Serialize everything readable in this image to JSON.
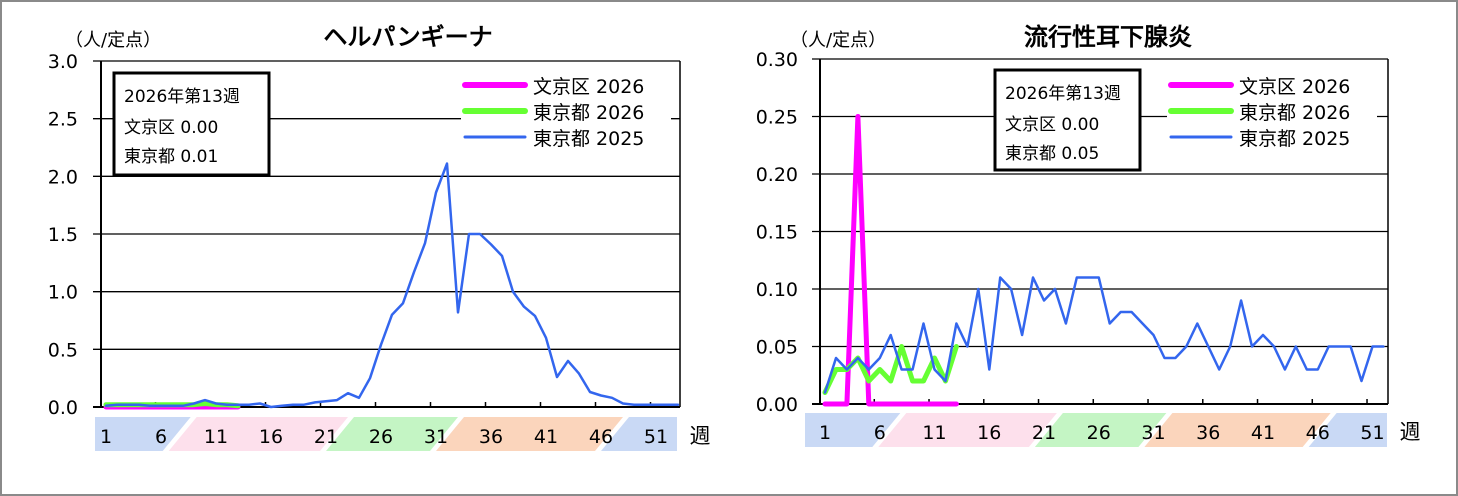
{
  "chart_data": [
    {
      "type": "line",
      "title": "ヘルパンギーナ",
      "ylabel": "（人/定点）",
      "xlabel": "週",
      "ylim": [
        0,
        3.0
      ],
      "yticks": [
        "0.0",
        "0.5",
        "1.0",
        "1.5",
        "2.0",
        "2.5",
        "3.0"
      ],
      "ytick_values": [
        0,
        0.5,
        1.0,
        1.5,
        2.0,
        2.5,
        3.0
      ],
      "x_tick_labels": [
        "1",
        "6",
        "11",
        "16",
        "21",
        "26",
        "31",
        "36",
        "41",
        "46",
        "51"
      ],
      "grid": true,
      "legend_position": "top-right",
      "info_box": {
        "line1": "2026年第13週",
        "line2_label": "文京区",
        "line2_value": "0.00",
        "line3_label": "東京都",
        "line3_value": "0.01"
      },
      "series": [
        {
          "name": "文京区 2026",
          "color": "#ff00ff",
          "width": 5,
          "values": [
            0,
            0,
            0,
            0,
            0,
            0,
            0,
            0,
            0,
            0,
            0,
            0,
            0
          ]
        },
        {
          "name": "東京都 2026",
          "color": "#66ff33",
          "width": 5,
          "values": [
            0.02,
            0.02,
            0.02,
            0.02,
            0.02,
            0.02,
            0.02,
            0.02,
            0.02,
            0.03,
            0.02,
            0.02,
            0.01
          ]
        },
        {
          "name": "東京都 2025",
          "color": "#3366ee",
          "width": 2.5,
          "values": [
            0.01,
            0.02,
            0.02,
            0.02,
            0.01,
            0.01,
            0.01,
            0.01,
            0.03,
            0.06,
            0.03,
            0.02,
            0.02,
            0.02,
            0.03,
            0.0,
            0.01,
            0.02,
            0.02,
            0.04,
            0.05,
            0.06,
            0.12,
            0.08,
            0.25,
            0.54,
            0.8,
            0.9,
            1.17,
            1.42,
            1.86,
            2.11,
            0.82,
            1.5,
            1.5,
            1.41,
            1.31,
            1.0,
            0.87,
            0.79,
            0.6,
            0.26,
            0.4,
            0.29,
            0.13,
            0.1,
            0.08,
            0.03,
            0.02,
            0.02,
            0.02,
            0.02,
            0.02
          ]
        }
      ]
    },
    {
      "type": "line",
      "title": "流行性耳下腺炎",
      "ylabel": "（人/定点）",
      "xlabel": "週",
      "ylim": [
        0,
        0.3
      ],
      "yticks": [
        "0.00",
        "0.05",
        "0.10",
        "0.15",
        "0.20",
        "0.25",
        "0.30"
      ],
      "ytick_values": [
        0,
        0.05,
        0.1,
        0.15,
        0.2,
        0.25,
        0.3
      ],
      "x_tick_labels": [
        "1",
        "6",
        "11",
        "16",
        "21",
        "26",
        "31",
        "36",
        "41",
        "46",
        "51"
      ],
      "grid": true,
      "legend_position": "top-right",
      "info_box": {
        "line1": "2026年第13週",
        "line2_label": "文京区",
        "line2_value": "0.00",
        "line3_label": "東京都",
        "line3_value": "0.05"
      },
      "series": [
        {
          "name": "文京区 2026",
          "color": "#ff00ff",
          "width": 5,
          "values": [
            0,
            0,
            0,
            0.25,
            0,
            0,
            0,
            0,
            0,
            0,
            0,
            0,
            0
          ]
        },
        {
          "name": "東京都 2026",
          "color": "#66ff33",
          "width": 5,
          "values": [
            0.01,
            0.03,
            0.03,
            0.04,
            0.02,
            0.03,
            0.02,
            0.05,
            0.02,
            0.02,
            0.04,
            0.02,
            0.05
          ]
        },
        {
          "name": "東京都 2025",
          "color": "#3366ee",
          "width": 2.5,
          "values": [
            0.01,
            0.04,
            0.03,
            0.04,
            0.03,
            0.04,
            0.06,
            0.03,
            0.03,
            0.07,
            0.03,
            0.02,
            0.07,
            0.05,
            0.1,
            0.03,
            0.11,
            0.1,
            0.06,
            0.11,
            0.09,
            0.1,
            0.07,
            0.11,
            0.11,
            0.11,
            0.07,
            0.08,
            0.08,
            0.07,
            0.06,
            0.04,
            0.04,
            0.05,
            0.07,
            0.05,
            0.03,
            0.05,
            0.09,
            0.05,
            0.06,
            0.05,
            0.03,
            0.05,
            0.03,
            0.03,
            0.05,
            0.05,
            0.05,
            0.02,
            0.05,
            0.05
          ]
        }
      ]
    }
  ],
  "season_bands": [
    {
      "label_weeks": [
        "1",
        "6"
      ],
      "color": "#c9d9f5"
    },
    {
      "label_weeks": [
        "11",
        "16",
        "21"
      ],
      "color": "#fde0ec"
    },
    {
      "label_weeks": [
        "26",
        "31"
      ],
      "color": "#c4f5c4"
    },
    {
      "label_weeks": [
        "36",
        "41",
        "46"
      ],
      "color": "#fbd5bc"
    },
    {
      "label_weeks": [
        "51"
      ],
      "color": "#c9d9f5"
    }
  ]
}
